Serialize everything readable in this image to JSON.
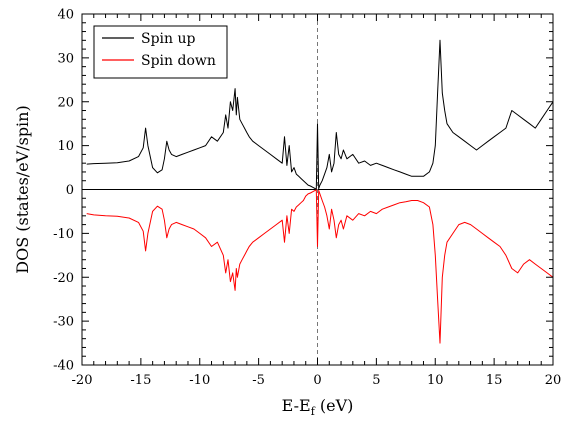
{
  "chart_data": {
    "type": "line",
    "title": "",
    "xlabel_main": "E-E",
    "xlabel_sub": "f",
    "xlabel_unit": " (eV)",
    "ylabel": "DOS (states/eV/spin)",
    "xlim": [
      -20,
      20
    ],
    "ylim": [
      -40,
      40
    ],
    "xticks": [
      -20,
      -15,
      -10,
      -5,
      0,
      5,
      10,
      15,
      20
    ],
    "yticks": [
      -40,
      -30,
      -20,
      -10,
      0,
      10,
      20,
      30,
      40
    ],
    "grid": false,
    "legend_position": "top-left",
    "zero_line": true,
    "fermi_line_x": 0,
    "series": [
      {
        "name": "Spin up",
        "color": "#000000",
        "x": [
          -19.6,
          -19.0,
          -18.0,
          -17.0,
          -16.0,
          -15.2,
          -14.8,
          -14.6,
          -14.4,
          -14.0,
          -13.6,
          -13.2,
          -13.0,
          -12.8,
          -12.6,
          -12.4,
          -12.0,
          -11.5,
          -11.0,
          -10.5,
          -10.0,
          -9.5,
          -9.0,
          -8.5,
          -8.0,
          -7.8,
          -7.6,
          -7.4,
          -7.2,
          -7.0,
          -6.9,
          -6.8,
          -6.6,
          -6.4,
          -6.2,
          -6.0,
          -5.8,
          -5.5,
          -5.0,
          -4.5,
          -4.0,
          -3.5,
          -3.0,
          -2.8,
          -2.6,
          -2.4,
          -2.2,
          -2.0,
          -1.8,
          -1.6,
          -1.4,
          -1.2,
          -1.0,
          -0.8,
          -0.6,
          -0.4,
          -0.2,
          -0.1,
          0.0,
          0.1,
          0.2,
          0.4,
          0.6,
          0.8,
          1.0,
          1.2,
          1.4,
          1.6,
          1.8,
          2.0,
          2.2,
          2.5,
          3.0,
          3.5,
          4.0,
          4.5,
          5.0,
          5.5,
          6.0,
          6.5,
          7.0,
          7.5,
          8.0,
          8.5,
          9.0,
          9.5,
          9.8,
          10.0,
          10.2,
          10.4,
          10.6,
          10.8,
          11.0,
          11.5,
          12.0,
          12.5,
          13.0,
          13.5,
          14.0,
          14.5,
          15.0,
          15.5,
          16.0,
          16.5,
          17.0,
          17.5,
          18.0,
          18.5,
          19.0,
          19.5,
          20.0
        ],
        "y": [
          5.8,
          5.9,
          6.0,
          6.1,
          6.5,
          7.5,
          9.5,
          14.0,
          10.0,
          5.0,
          3.8,
          4.5,
          7.0,
          11.0,
          9.0,
          8.0,
          7.5,
          8.0,
          8.5,
          9.0,
          9.5,
          10.0,
          12.0,
          11.0,
          13.0,
          17.0,
          14.0,
          20.0,
          18.0,
          23.0,
          17.0,
          21.0,
          16.0,
          15.0,
          14.0,
          13.0,
          12.0,
          11.0,
          10.0,
          9.0,
          8.0,
          7.0,
          6.0,
          12.0,
          5.5,
          10.0,
          4.0,
          5.0,
          3.5,
          3.0,
          2.5,
          2.0,
          1.5,
          1.0,
          0.8,
          0.5,
          0.2,
          0.1,
          15.0,
          0.2,
          1.0,
          2.0,
          3.5,
          5.0,
          8.0,
          4.0,
          6.0,
          13.0,
          8.0,
          7.0,
          9.0,
          7.0,
          8.0,
          6.0,
          6.5,
          5.5,
          6.0,
          5.5,
          5.0,
          4.5,
          4.0,
          3.5,
          3.0,
          3.0,
          3.0,
          4.0,
          6.0,
          10.0,
          22.0,
          34.0,
          22.0,
          18.0,
          15.0,
          13.0,
          12.0,
          11.0,
          10.0,
          9.0,
          10.0,
          11.0,
          12.0,
          13.0,
          14.0,
          18.0,
          17.0,
          16.0,
          15.0,
          14.0,
          16.0,
          18.0,
          20.0
        ]
      },
      {
        "name": "Spin down",
        "color": "#ff0000",
        "x": [
          -19.6,
          -19.0,
          -18.0,
          -17.0,
          -16.0,
          -15.2,
          -14.8,
          -14.6,
          -14.4,
          -14.0,
          -13.6,
          -13.2,
          -13.0,
          -12.8,
          -12.6,
          -12.4,
          -12.0,
          -11.5,
          -11.0,
          -10.5,
          -10.0,
          -9.5,
          -9.0,
          -8.5,
          -8.0,
          -7.8,
          -7.6,
          -7.4,
          -7.2,
          -7.0,
          -6.9,
          -6.8,
          -6.6,
          -6.4,
          -6.2,
          -6.0,
          -5.8,
          -5.5,
          -5.0,
          -4.5,
          -4.0,
          -3.5,
          -3.0,
          -2.8,
          -2.6,
          -2.4,
          -2.2,
          -2.0,
          -1.8,
          -1.6,
          -1.4,
          -1.2,
          -1.0,
          -0.8,
          -0.6,
          -0.4,
          -0.2,
          -0.1,
          0.0,
          0.1,
          0.2,
          0.4,
          0.6,
          0.8,
          1.0,
          1.2,
          1.4,
          1.6,
          1.8,
          2.0,
          2.2,
          2.5,
          3.0,
          3.5,
          4.0,
          4.5,
          5.0,
          5.5,
          6.0,
          6.5,
          7.0,
          7.5,
          8.0,
          8.5,
          9.0,
          9.5,
          9.8,
          10.0,
          10.2,
          10.4,
          10.6,
          10.8,
          11.0,
          11.5,
          12.0,
          12.5,
          13.0,
          13.5,
          14.0,
          14.5,
          15.0,
          15.5,
          16.0,
          16.5,
          17.0,
          17.5,
          18.0,
          18.5,
          19.0,
          19.5,
          20.0
        ],
        "y": [
          -5.5,
          -5.8,
          -6.0,
          -6.1,
          -6.5,
          -7.5,
          -9.5,
          -14.0,
          -10.0,
          -5.0,
          -3.8,
          -4.5,
          -7.0,
          -11.0,
          -9.0,
          -8.0,
          -7.5,
          -8.0,
          -8.5,
          -9.0,
          -10.0,
          -11.0,
          -13.0,
          -12.0,
          -15.0,
          -19.0,
          -16.0,
          -21.0,
          -19.0,
          -23.0,
          -18.0,
          -20.0,
          -17.0,
          -16.0,
          -15.0,
          -14.0,
          -13.0,
          -12.0,
          -11.0,
          -10.0,
          -9.0,
          -8.0,
          -7.0,
          -12.0,
          -6.0,
          -10.0,
          -4.5,
          -5.0,
          -4.0,
          -3.5,
          -3.0,
          -2.5,
          -1.5,
          -1.0,
          -0.8,
          -0.5,
          -0.2,
          -0.1,
          -13.0,
          -0.2,
          -1.0,
          -2.5,
          -4.0,
          -6.0,
          -9.0,
          -4.5,
          -7.0,
          -11.0,
          -8.0,
          -7.0,
          -9.0,
          -6.0,
          -7.0,
          -5.5,
          -6.0,
          -5.0,
          -5.5,
          -4.5,
          -4.0,
          -3.5,
          -3.0,
          -2.8,
          -2.5,
          -2.5,
          -3.0,
          -4.0,
          -8.0,
          -15.0,
          -25.0,
          -35.0,
          -20.0,
          -15.0,
          -12.0,
          -10.0,
          -8.0,
          -7.5,
          -8.0,
          -9.0,
          -10.0,
          -11.0,
          -12.0,
          -13.0,
          -15.0,
          -18.0,
          -19.0,
          -17.0,
          -16.0,
          -17.0,
          -18.0,
          -19.0,
          -20.0
        ]
      }
    ]
  }
}
